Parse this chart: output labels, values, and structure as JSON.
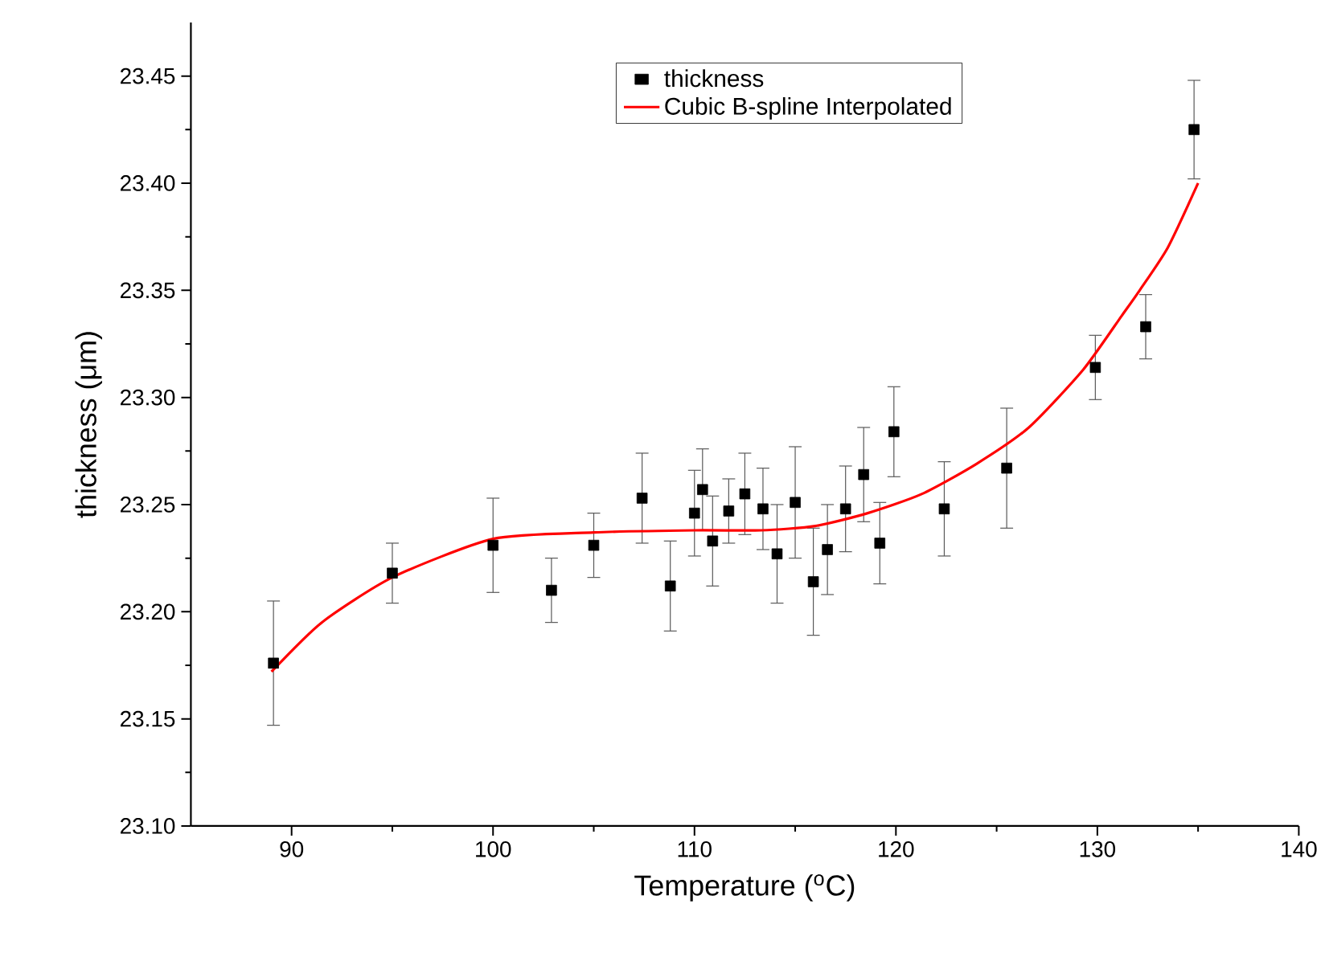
{
  "chart_data": {
    "type": "scatter",
    "xlabel": "Temperature ($^{o}$C)",
    "ylabel": "thickness (μm)",
    "xlim": [
      85,
      140
    ],
    "xticks": [
      90,
      100,
      110,
      120,
      130,
      140
    ],
    "ylim": [
      23.1,
      23.475
    ],
    "yticks": [
      {
        "value": 23.1,
        "label": "23.10"
      },
      {
        "value": 23.15,
        "label": "23.15"
      },
      {
        "value": 23.2,
        "label": "23.20"
      },
      {
        "value": 23.25,
        "label": "23.25"
      },
      {
        "value": 23.3,
        "label": "23.30"
      },
      {
        "value": 23.35,
        "label": "23.35"
      },
      {
        "value": 23.4,
        "label": "23.40"
      },
      {
        "value": 23.45,
        "label": "23.45"
      }
    ],
    "legend": "top",
    "series": [
      {
        "name": "thickness",
        "marker": "square",
        "color": "#000000",
        "x": [
          89.1,
          95.0,
          100.0,
          102.9,
          105.0,
          107.4,
          108.8,
          110.0,
          110.4,
          110.9,
          111.7,
          112.5,
          113.4,
          114.1,
          115.0,
          115.9,
          116.6,
          117.5,
          118.4,
          119.2,
          119.9,
          122.4,
          125.5,
          129.9,
          132.4,
          134.8
        ],
        "values": [
          23.176,
          23.218,
          23.231,
          23.21,
          23.231,
          23.253,
          23.212,
          23.246,
          23.257,
          23.233,
          23.247,
          23.255,
          23.248,
          23.227,
          23.251,
          23.214,
          23.229,
          23.248,
          23.264,
          23.232,
          23.284,
          23.248,
          23.267,
          23.314,
          23.333,
          23.425
        ],
        "errors": [
          0.029,
          0.014,
          0.022,
          0.015,
          0.015,
          0.021,
          0.021,
          0.02,
          0.019,
          0.021,
          0.015,
          0.019,
          0.019,
          0.023,
          0.026,
          0.025,
          0.021,
          0.02,
          0.022,
          0.019,
          0.021,
          0.022,
          0.028,
          0.015,
          0.015,
          0.023
        ]
      },
      {
        "name": "Cubic B-spline Interpolated",
        "type": "line",
        "marker": "none",
        "line_style": "solid",
        "color": "#ff0000",
        "x": [
          89.0,
          91.5,
          95.0,
          100.0,
          105.0,
          110.0,
          113.3,
          116.0,
          118.6,
          121.3,
          124.0,
          126.6,
          129.3,
          131.2,
          132.1,
          133.5,
          135.0
        ],
        "values": [
          23.172,
          23.195,
          23.216,
          23.234,
          23.237,
          23.238,
          23.238,
          23.24,
          23.246,
          23.255,
          23.269,
          23.286,
          23.313,
          23.338,
          23.35,
          23.37,
          23.4
        ]
      }
    ]
  }
}
